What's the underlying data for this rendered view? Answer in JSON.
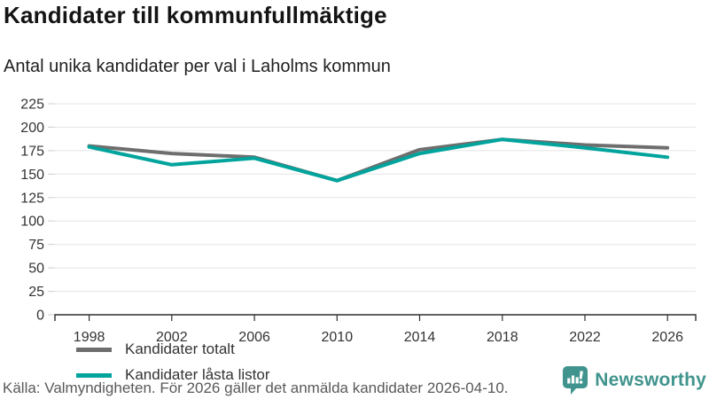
{
  "header": {
    "title": "Kandidater till kommunfullmäktige",
    "subtitle": "Antal unika kandidater per val i Laholms kommun"
  },
  "chart_data": {
    "type": "line",
    "title": "Kandidater till kommunfullmäktige",
    "subtitle": "Antal unika kandidater per val i Laholms kommun",
    "categories": [
      "1998",
      "2002",
      "2006",
      "2010",
      "2014",
      "2018",
      "2022",
      "2026"
    ],
    "series": [
      {
        "name": "Kandidater totalt",
        "color": "#6e6e6e",
        "values": [
          180,
          172,
          168,
          143,
          176,
          187,
          181,
          178
        ]
      },
      {
        "name": "Kandidater låsta listor",
        "color": "#00a49c",
        "values": [
          179,
          160,
          167,
          143,
          172,
          187,
          178,
          168
        ]
      }
    ],
    "xlabel": "",
    "ylabel": "",
    "ylim": [
      0,
      225
    ],
    "y_ticks": [
      0,
      25,
      50,
      75,
      100,
      125,
      150,
      175,
      200,
      225
    ],
    "grid": true,
    "legend_position": "inside-bottom-left"
  },
  "footer": {
    "source": "Källa: Valmyndigheten. För 2026 gäller det anmälda kandidater 2026-04-10.",
    "brand": "Newsworthy",
    "brand_color": "#40948d",
    "logo_icon": "bar-chart-speech-bubble"
  },
  "colors": {
    "grid": "#e4e4e4",
    "axis": "#2e2e2e",
    "tick_text": "#333333"
  }
}
